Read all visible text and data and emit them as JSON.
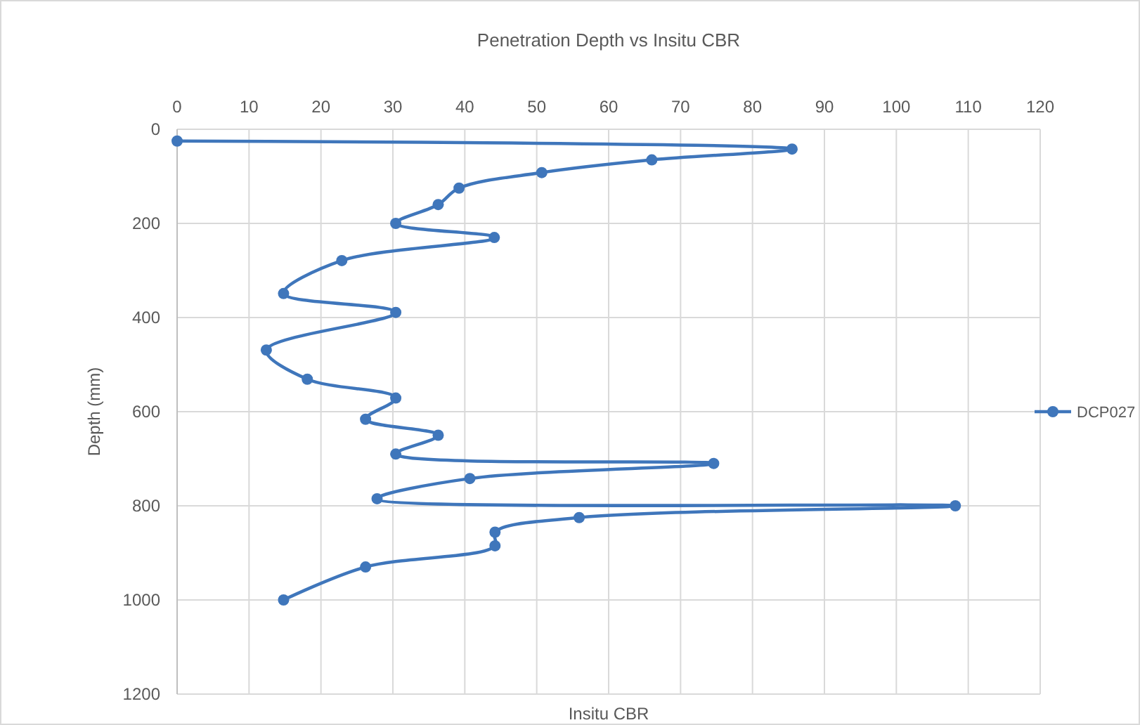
{
  "chart_data": {
    "type": "line",
    "title": "Penetration Depth vs Insitu CBR",
    "xlabel": "Insitu CBR",
    "ylabel": "Depth (mm)",
    "xlim": [
      0,
      120
    ],
    "xticks": [
      0,
      10,
      20,
      30,
      40,
      50,
      60,
      70,
      80,
      90,
      100,
      110,
      120
    ],
    "ylim": [
      1200,
      0
    ],
    "yticks": [
      0,
      200,
      400,
      600,
      800,
      1000,
      1200
    ],
    "grid": true,
    "legend": "right",
    "marker": "circle",
    "line_style": "solid",
    "series": [
      {
        "name": "DCP027",
        "color": "#3f76bb",
        "x": [
          0,
          85.5,
          66,
          50.7,
          39.2,
          36.3,
          30.4,
          44.1,
          22.9,
          14.8,
          30.4,
          12.4,
          18.1,
          30.4,
          26.2,
          36.3,
          30.4,
          74.6,
          40.7,
          27.8,
          108.2,
          55.9,
          44.2,
          44.2,
          26.2,
          14.8
        ],
        "values": [
          25,
          42,
          65,
          92,
          125,
          160,
          200,
          230,
          279,
          349,
          389,
          469,
          531,
          571,
          616,
          650,
          690,
          710,
          742,
          785,
          800,
          825,
          856,
          885,
          930,
          1000
        ]
      }
    ]
  }
}
